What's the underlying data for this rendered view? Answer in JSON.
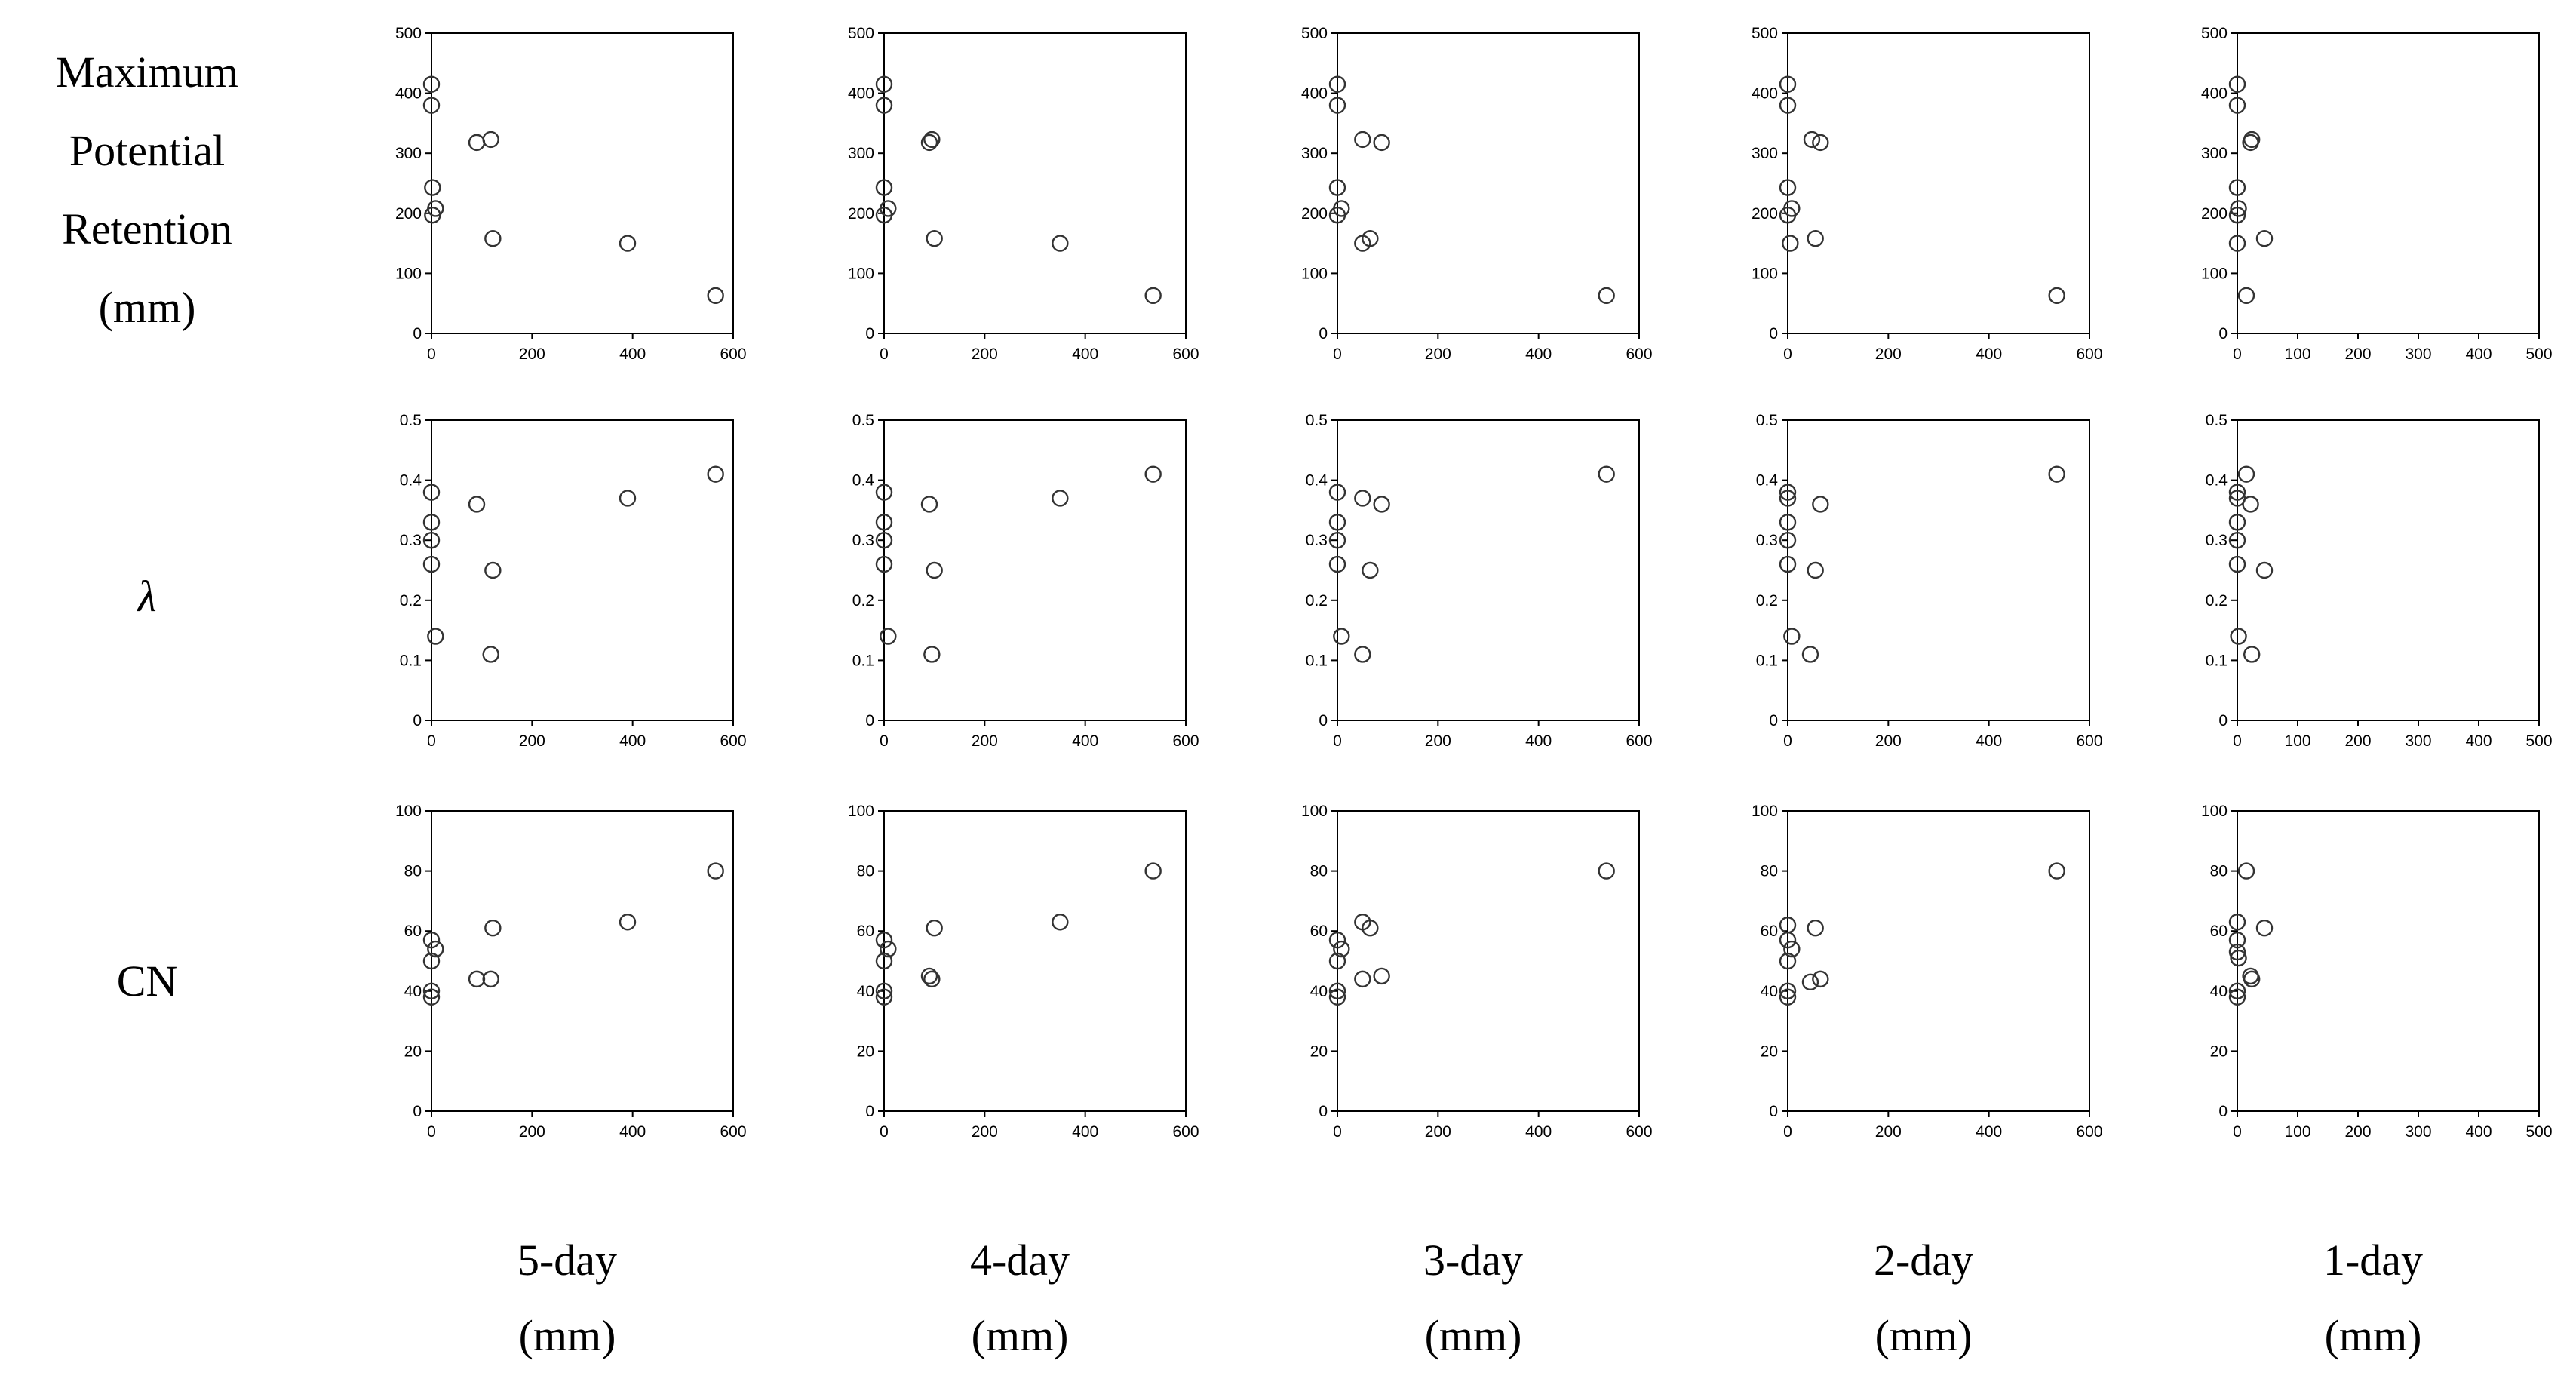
{
  "row_labels": [
    [
      "Maximum",
      "Potential",
      "Retention",
      "(mm)"
    ],
    [
      "λ"
    ],
    [
      "CN"
    ]
  ],
  "col_labels": [
    [
      "5-day",
      "(mm)"
    ],
    [
      "4-day",
      "(mm)"
    ],
    [
      "3-day",
      "(mm)"
    ],
    [
      "2-day",
      "(mm)"
    ],
    [
      "1-day",
      "(mm)"
    ]
  ],
  "chart_data": [
    {
      "type": "scatter",
      "row": 0,
      "col": 0,
      "xlim": [
        0,
        600
      ],
      "xticks": [
        0,
        200,
        400,
        600
      ],
      "ylim": [
        0,
        500
      ],
      "yticks": [
        0,
        100,
        200,
        300,
        400,
        500
      ],
      "grid": false,
      "points": [
        [
          0,
          415
        ],
        [
          0,
          380
        ],
        [
          2,
          243
        ],
        [
          2,
          197
        ],
        [
          8,
          208
        ],
        [
          90,
          318
        ],
        [
          118,
          323
        ],
        [
          122,
          158
        ],
        [
          390,
          150
        ],
        [
          565,
          63
        ]
      ]
    },
    {
      "type": "scatter",
      "row": 0,
      "col": 1,
      "xlim": [
        0,
        600
      ],
      "xticks": [
        0,
        200,
        400,
        600
      ],
      "ylim": [
        0,
        500
      ],
      "yticks": [
        0,
        100,
        200,
        300,
        400,
        500
      ],
      "grid": false,
      "points": [
        [
          0,
          415
        ],
        [
          0,
          380
        ],
        [
          0,
          243
        ],
        [
          0,
          197
        ],
        [
          8,
          208
        ],
        [
          90,
          318
        ],
        [
          95,
          323
        ],
        [
          100,
          158
        ],
        [
          350,
          150
        ],
        [
          535,
          63
        ]
      ]
    },
    {
      "type": "scatter",
      "row": 0,
      "col": 2,
      "xlim": [
        0,
        600
      ],
      "xticks": [
        0,
        200,
        400,
        600
      ],
      "ylim": [
        0,
        500
      ],
      "yticks": [
        0,
        100,
        200,
        300,
        400,
        500
      ],
      "grid": false,
      "points": [
        [
          0,
          415
        ],
        [
          0,
          380
        ],
        [
          0,
          243
        ],
        [
          0,
          197
        ],
        [
          8,
          208
        ],
        [
          50,
          323
        ],
        [
          50,
          150
        ],
        [
          65,
          158
        ],
        [
          88,
          318
        ],
        [
          535,
          63
        ]
      ]
    },
    {
      "type": "scatter",
      "row": 0,
      "col": 3,
      "xlim": [
        0,
        600
      ],
      "xticks": [
        0,
        200,
        400,
        600
      ],
      "ylim": [
        0,
        500
      ],
      "yticks": [
        0,
        100,
        200,
        300,
        400,
        500
      ],
      "grid": false,
      "points": [
        [
          0,
          415
        ],
        [
          0,
          380
        ],
        [
          0,
          243
        ],
        [
          0,
          197
        ],
        [
          5,
          150
        ],
        [
          8,
          208
        ],
        [
          48,
          323
        ],
        [
          55,
          158
        ],
        [
          65,
          318
        ],
        [
          535,
          63
        ]
      ]
    },
    {
      "type": "scatter",
      "row": 0,
      "col": 4,
      "xlim": [
        0,
        500
      ],
      "xticks": [
        0,
        100,
        200,
        300,
        400,
        500
      ],
      "ylim": [
        0,
        500
      ],
      "yticks": [
        0,
        100,
        200,
        300,
        400,
        500
      ],
      "grid": false,
      "points": [
        [
          0,
          415
        ],
        [
          0,
          380
        ],
        [
          0,
          243
        ],
        [
          0,
          197
        ],
        [
          0,
          150
        ],
        [
          2,
          208
        ],
        [
          15,
          63
        ],
        [
          22,
          318
        ],
        [
          24,
          323
        ],
        [
          45,
          158
        ]
      ]
    },
    {
      "type": "scatter",
      "row": 1,
      "col": 0,
      "xlim": [
        0,
        600
      ],
      "xticks": [
        0,
        200,
        400,
        600
      ],
      "ylim": [
        0,
        0.5
      ],
      "yticks": [
        0,
        0.1,
        0.2,
        0.3,
        0.4,
        0.5
      ],
      "grid": false,
      "points": [
        [
          0,
          0.38
        ],
        [
          0,
          0.33
        ],
        [
          0,
          0.3
        ],
        [
          0,
          0.26
        ],
        [
          8,
          0.14
        ],
        [
          90,
          0.36
        ],
        [
          118,
          0.11
        ],
        [
          122,
          0.25
        ],
        [
          390,
          0.37
        ],
        [
          565,
          0.41
        ]
      ]
    },
    {
      "type": "scatter",
      "row": 1,
      "col": 1,
      "xlim": [
        0,
        600
      ],
      "xticks": [
        0,
        200,
        400,
        600
      ],
      "ylim": [
        0,
        0.5
      ],
      "yticks": [
        0,
        0.1,
        0.2,
        0.3,
        0.4,
        0.5
      ],
      "grid": false,
      "points": [
        [
          0,
          0.38
        ],
        [
          0,
          0.33
        ],
        [
          0,
          0.3
        ],
        [
          0,
          0.26
        ],
        [
          8,
          0.14
        ],
        [
          90,
          0.36
        ],
        [
          95,
          0.11
        ],
        [
          100,
          0.25
        ],
        [
          350,
          0.37
        ],
        [
          535,
          0.41
        ]
      ]
    },
    {
      "type": "scatter",
      "row": 1,
      "col": 2,
      "xlim": [
        0,
        600
      ],
      "xticks": [
        0,
        200,
        400,
        600
      ],
      "ylim": [
        0,
        0.5
      ],
      "yticks": [
        0,
        0.1,
        0.2,
        0.3,
        0.4,
        0.5
      ],
      "grid": false,
      "points": [
        [
          0,
          0.38
        ],
        [
          0,
          0.33
        ],
        [
          0,
          0.3
        ],
        [
          0,
          0.26
        ],
        [
          8,
          0.14
        ],
        [
          50,
          0.37
        ],
        [
          50,
          0.11
        ],
        [
          65,
          0.25
        ],
        [
          88,
          0.36
        ],
        [
          535,
          0.41
        ]
      ]
    },
    {
      "type": "scatter",
      "row": 1,
      "col": 3,
      "xlim": [
        0,
        600
      ],
      "xticks": [
        0,
        200,
        400,
        600
      ],
      "ylim": [
        0,
        0.5
      ],
      "yticks": [
        0,
        0.1,
        0.2,
        0.3,
        0.4,
        0.5
      ],
      "grid": false,
      "points": [
        [
          0,
          0.38
        ],
        [
          0,
          0.37
        ],
        [
          0,
          0.33
        ],
        [
          0,
          0.3
        ],
        [
          0,
          0.26
        ],
        [
          8,
          0.14
        ],
        [
          45,
          0.11
        ],
        [
          55,
          0.25
        ],
        [
          65,
          0.36
        ],
        [
          535,
          0.41
        ]
      ]
    },
    {
      "type": "scatter",
      "row": 1,
      "col": 4,
      "xlim": [
        0,
        500
      ],
      "xticks": [
        0,
        100,
        200,
        300,
        400,
        500
      ],
      "ylim": [
        0,
        0.5
      ],
      "yticks": [
        0,
        0.1,
        0.2,
        0.3,
        0.4,
        0.5
      ],
      "grid": false,
      "points": [
        [
          0,
          0.38
        ],
        [
          0,
          0.37
        ],
        [
          0,
          0.33
        ],
        [
          0,
          0.3
        ],
        [
          0,
          0.26
        ],
        [
          2,
          0.14
        ],
        [
          15,
          0.41
        ],
        [
          22,
          0.36
        ],
        [
          24,
          0.11
        ],
        [
          45,
          0.25
        ]
      ]
    },
    {
      "type": "scatter",
      "row": 2,
      "col": 0,
      "xlim": [
        0,
        600
      ],
      "xticks": [
        0,
        200,
        400,
        600
      ],
      "ylim": [
        0,
        100
      ],
      "yticks": [
        0,
        20,
        40,
        60,
        80,
        100
      ],
      "grid": false,
      "points": [
        [
          0,
          57
        ],
        [
          0,
          50
        ],
        [
          0,
          40
        ],
        [
          0,
          38
        ],
        [
          8,
          54
        ],
        [
          90,
          44
        ],
        [
          118,
          44
        ],
        [
          122,
          61
        ],
        [
          390,
          63
        ],
        [
          565,
          80
        ]
      ]
    },
    {
      "type": "scatter",
      "row": 2,
      "col": 1,
      "xlim": [
        0,
        600
      ],
      "xticks": [
        0,
        200,
        400,
        600
      ],
      "ylim": [
        0,
        100
      ],
      "yticks": [
        0,
        20,
        40,
        60,
        80,
        100
      ],
      "grid": false,
      "points": [
        [
          0,
          57
        ],
        [
          0,
          50
        ],
        [
          0,
          40
        ],
        [
          0,
          38
        ],
        [
          8,
          54
        ],
        [
          90,
          45
        ],
        [
          95,
          44
        ],
        [
          100,
          61
        ],
        [
          350,
          63
        ],
        [
          535,
          80
        ]
      ]
    },
    {
      "type": "scatter",
      "row": 2,
      "col": 2,
      "xlim": [
        0,
        600
      ],
      "xticks": [
        0,
        200,
        400,
        600
      ],
      "ylim": [
        0,
        100
      ],
      "yticks": [
        0,
        20,
        40,
        60,
        80,
        100
      ],
      "grid": false,
      "points": [
        [
          0,
          57
        ],
        [
          0,
          50
        ],
        [
          0,
          40
        ],
        [
          0,
          38
        ],
        [
          8,
          54
        ],
        [
          50,
          63
        ],
        [
          50,
          44
        ],
        [
          65,
          61
        ],
        [
          88,
          45
        ],
        [
          535,
          80
        ]
      ]
    },
    {
      "type": "scatter",
      "row": 2,
      "col": 3,
      "xlim": [
        0,
        600
      ],
      "xticks": [
        0,
        200,
        400,
        600
      ],
      "ylim": [
        0,
        100
      ],
      "yticks": [
        0,
        20,
        40,
        60,
        80,
        100
      ],
      "grid": false,
      "points": [
        [
          0,
          62
        ],
        [
          0,
          57
        ],
        [
          0,
          50
        ],
        [
          0,
          40
        ],
        [
          0,
          38
        ],
        [
          8,
          54
        ],
        [
          45,
          43
        ],
        [
          55,
          61
        ],
        [
          65,
          44
        ],
        [
          535,
          80
        ]
      ]
    },
    {
      "type": "scatter",
      "row": 2,
      "col": 4,
      "xlim": [
        0,
        500
      ],
      "xticks": [
        0,
        100,
        200,
        300,
        400,
        500
      ],
      "ylim": [
        0,
        100
      ],
      "yticks": [
        0,
        20,
        40,
        60,
        80,
        100
      ],
      "grid": false,
      "points": [
        [
          0,
          63
        ],
        [
          0,
          57
        ],
        [
          0,
          53
        ],
        [
          0,
          40
        ],
        [
          0,
          38
        ],
        [
          15,
          80
        ],
        [
          22,
          45
        ],
        [
          24,
          44
        ],
        [
          45,
          61
        ],
        [
          2,
          51
        ]
      ]
    }
  ]
}
